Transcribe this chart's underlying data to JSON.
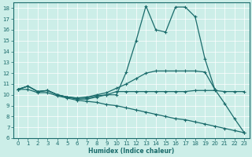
{
  "xlabel": "Humidex (Indice chaleur)",
  "ylabel": "",
  "xlim": [
    -0.5,
    23.5
  ],
  "ylim": [
    6,
    18.5
  ],
  "yticks": [
    6,
    7,
    8,
    9,
    10,
    11,
    12,
    13,
    14,
    15,
    16,
    17,
    18
  ],
  "xticks": [
    0,
    1,
    2,
    3,
    4,
    5,
    6,
    7,
    8,
    9,
    10,
    11,
    12,
    13,
    14,
    15,
    16,
    17,
    18,
    19,
    20,
    21,
    22,
    23
  ],
  "bg_color": "#cceee8",
  "grid_color": "#ffffff",
  "line_color": "#1a6b6b",
  "lines": [
    {
      "x": [
        0,
        1,
        2,
        3,
        4,
        5,
        6,
        7,
        8,
        9,
        10,
        11,
        12,
        13,
        14,
        15,
        16,
        17,
        18,
        19,
        20,
        21,
        22,
        23
      ],
      "y": [
        10.5,
        10.8,
        10.3,
        10.4,
        10.0,
        9.8,
        9.7,
        9.7,
        9.9,
        10.0,
        10.0,
        12.1,
        15.0,
        18.2,
        16.0,
        15.8,
        18.1,
        18.1,
        17.2,
        13.3,
        10.5,
        9.2,
        7.8,
        6.5
      ]
    },
    {
      "x": [
        0,
        1,
        2,
        3,
        4,
        5,
        6,
        7,
        8,
        9,
        10,
        11,
        12,
        13,
        14,
        15,
        16,
        17,
        18,
        19,
        20,
        21,
        22,
        23
      ],
      "y": [
        10.5,
        10.8,
        10.3,
        10.4,
        10.0,
        9.8,
        9.6,
        9.6,
        9.8,
        10.0,
        10.3,
        10.3,
        10.3,
        10.3,
        10.3,
        10.3,
        10.3,
        10.3,
        10.4,
        10.4,
        10.4,
        10.3,
        10.3,
        10.3
      ]
    },
    {
      "x": [
        0,
        1,
        2,
        3,
        4,
        5,
        6,
        7,
        8,
        9,
        10,
        11,
        12,
        13,
        14,
        15,
        16,
        17,
        18,
        19,
        20
      ],
      "y": [
        10.5,
        10.8,
        10.3,
        10.4,
        10.0,
        9.8,
        9.7,
        9.8,
        10.0,
        10.2,
        10.6,
        11.0,
        11.5,
        12.0,
        12.2,
        12.2,
        12.2,
        12.2,
        12.2,
        12.1,
        10.5
      ]
    },
    {
      "x": [
        0,
        1,
        2,
        3,
        4,
        5,
        6,
        7,
        8,
        9,
        10,
        11,
        12,
        13,
        14,
        15,
        16,
        17,
        18,
        19,
        20,
        21,
        22,
        23
      ],
      "y": [
        10.5,
        10.5,
        10.2,
        10.2,
        9.9,
        9.7,
        9.5,
        9.4,
        9.3,
        9.1,
        9.0,
        8.8,
        8.6,
        8.4,
        8.2,
        8.0,
        7.8,
        7.7,
        7.5,
        7.3,
        7.1,
        6.9,
        6.7,
        6.5
      ]
    }
  ]
}
